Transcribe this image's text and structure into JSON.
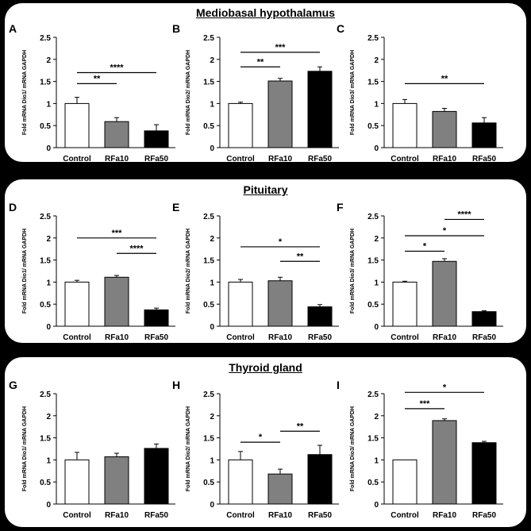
{
  "sections": [
    {
      "title": "Mediobasal hypothalamus"
    },
    {
      "title": "Pituitary"
    },
    {
      "title": "Thyroid gland"
    }
  ],
  "chart_data": [
    {
      "panel": "A",
      "type": "bar",
      "section": "Mediobasal hypothalamus",
      "ylabel": "Fold mRNA Dio1/ mRNA GAPDH",
      "categories": [
        "Control",
        "RFa10",
        "RFa50"
      ],
      "values": [
        1.0,
        0.59,
        0.38
      ],
      "errors": [
        0.14,
        0.09,
        0.14
      ],
      "colors": [
        "#ffffff",
        "#808080",
        "#000000"
      ],
      "ylim": [
        0,
        2.5
      ],
      "yticks": [
        "0",
        "0.5",
        "1",
        "1.5",
        "2",
        "2.5"
      ],
      "sig": [
        {
          "from": 0,
          "to": 1,
          "y": 1.45,
          "label": "**"
        },
        {
          "from": 0,
          "to": 2,
          "y": 1.7,
          "label": "****"
        }
      ]
    },
    {
      "panel": "B",
      "type": "bar",
      "section": "Mediobasal hypothalamus",
      "ylabel": "Fold mRNA Dio2/ mRNA GAPDH",
      "categories": [
        "Control",
        "RFa10",
        "RFa50"
      ],
      "values": [
        1.0,
        1.51,
        1.73
      ],
      "errors": [
        0.03,
        0.06,
        0.1
      ],
      "colors": [
        "#ffffff",
        "#808080",
        "#000000"
      ],
      "ylim": [
        0,
        2.5
      ],
      "yticks": [
        "0",
        "0.5",
        "1",
        "1.5",
        "2",
        "2.5"
      ],
      "sig": [
        {
          "from": 0,
          "to": 1,
          "y": 1.83,
          "label": "**"
        },
        {
          "from": 0,
          "to": 2,
          "y": 2.16,
          "label": "***"
        }
      ]
    },
    {
      "panel": "C",
      "type": "bar",
      "section": "Mediobasal hypothalamus",
      "ylabel": "Fold mRNA Dio3/ mRNA GAPDH",
      "categories": [
        "Control",
        "RFa10",
        "RFa50"
      ],
      "values": [
        1.0,
        0.82,
        0.56
      ],
      "errors": [
        0.09,
        0.07,
        0.12
      ],
      "colors": [
        "#ffffff",
        "#808080",
        "#000000"
      ],
      "ylim": [
        0,
        2.5
      ],
      "yticks": [
        "0",
        "0.5",
        "1",
        "1.5",
        "2",
        "2.5"
      ],
      "sig": [
        {
          "from": 0,
          "to": 2,
          "y": 1.45,
          "label": "**"
        }
      ]
    },
    {
      "panel": "D",
      "type": "bar",
      "section": "Pituitary",
      "ylabel": "Fold mRNA Dio1/ mRNA GAPDH",
      "categories": [
        "Control",
        "RFa10",
        "RFa50"
      ],
      "values": [
        1.0,
        1.11,
        0.37
      ],
      "errors": [
        0.04,
        0.04,
        0.04
      ],
      "colors": [
        "#ffffff",
        "#808080",
        "#000000"
      ],
      "ylim": [
        0,
        2.5
      ],
      "yticks": [
        "0",
        "0.5",
        "1",
        "1.5",
        "2",
        "2.5"
      ],
      "sig": [
        {
          "from": 1,
          "to": 2,
          "y": 1.65,
          "label": "****"
        },
        {
          "from": 0,
          "to": 2,
          "y": 2.0,
          "label": "***"
        }
      ]
    },
    {
      "panel": "E",
      "type": "bar",
      "section": "Pituitary",
      "ylabel": "Fold mRNA Dio2/ mRNA GAPDH",
      "categories": [
        "Control",
        "RFa10",
        "RFa50"
      ],
      "values": [
        1.0,
        1.03,
        0.44
      ],
      "errors": [
        0.06,
        0.08,
        0.05
      ],
      "colors": [
        "#ffffff",
        "#808080",
        "#000000"
      ],
      "ylim": [
        0,
        2.5
      ],
      "yticks": [
        "0",
        "0.5",
        "1",
        "1.5",
        "2",
        "2.5"
      ],
      "sig": [
        {
          "from": 1,
          "to": 2,
          "y": 1.47,
          "label": "**"
        },
        {
          "from": 0,
          "to": 2,
          "y": 1.8,
          "label": "*"
        }
      ]
    },
    {
      "panel": "F",
      "type": "bar",
      "section": "Pituitary",
      "ylabel": "Fold mRNA Dio3/ mRNA GAPDH",
      "categories": [
        "Control",
        "RFa10",
        "RFa50"
      ],
      "values": [
        1.0,
        1.47,
        0.33
      ],
      "errors": [
        0.02,
        0.06,
        0.02
      ],
      "colors": [
        "#ffffff",
        "#808080",
        "#000000"
      ],
      "ylim": [
        0,
        2.5
      ],
      "yticks": [
        "0",
        "0.5",
        "1",
        "1.5",
        "2",
        "2.5"
      ],
      "sig": [
        {
          "from": 0,
          "to": 1,
          "y": 1.7,
          "label": "*"
        },
        {
          "from": 0,
          "to": 2,
          "y": 2.05,
          "label": "*"
        },
        {
          "from": 1,
          "to": 2,
          "y": 2.42,
          "label": "****"
        }
      ]
    },
    {
      "panel": "G",
      "type": "bar",
      "section": "Thyroid gland",
      "ylabel": "Fold mRNA Dio1/ mRNA GAPDH",
      "categories": [
        "Control",
        "RFa10",
        "RFa50"
      ],
      "values": [
        1.0,
        1.07,
        1.26
      ],
      "errors": [
        0.17,
        0.08,
        0.1
      ],
      "colors": [
        "#ffffff",
        "#808080",
        "#000000"
      ],
      "ylim": [
        0,
        2.5
      ],
      "yticks": [
        "0",
        "0.5",
        "1",
        "1.5",
        "2",
        "2.5"
      ],
      "sig": []
    },
    {
      "panel": "H",
      "type": "bar",
      "section": "Thyroid gland",
      "ylabel": "Fold mRNA Dio2/ mRNA GAPDH",
      "categories": [
        "Control",
        "RFa10",
        "RFa50"
      ],
      "values": [
        1.0,
        0.68,
        1.12
      ],
      "errors": [
        0.19,
        0.11,
        0.21
      ],
      "colors": [
        "#ffffff",
        "#808080",
        "#000000"
      ],
      "ylim": [
        0,
        2.5
      ],
      "yticks": [
        "0",
        "0.5",
        "1",
        "1.5",
        "2",
        "2.5"
      ],
      "sig": [
        {
          "from": 0,
          "to": 1,
          "y": 1.4,
          "label": "*"
        },
        {
          "from": 1,
          "to": 2,
          "y": 1.65,
          "label": "**"
        }
      ]
    },
    {
      "panel": "I",
      "type": "bar",
      "section": "Thyroid gland",
      "ylabel": "Fold mRNA Dio3/ mRNA GAPDH",
      "categories": [
        "Control",
        "RFa10",
        "RFa50"
      ],
      "values": [
        1.0,
        1.89,
        1.39
      ],
      "errors": [
        0.0,
        0.04,
        0.03
      ],
      "colors": [
        "#ffffff",
        "#808080",
        "#000000"
      ],
      "ylim": [
        0,
        2.5
      ],
      "yticks": [
        "0",
        "0.5",
        "1",
        "1.5",
        "2",
        "2.5"
      ],
      "sig": [
        {
          "from": 0,
          "to": 1,
          "y": 2.16,
          "label": "***"
        },
        {
          "from": 0,
          "to": 2,
          "y": 2.53,
          "label": "*"
        }
      ]
    }
  ]
}
